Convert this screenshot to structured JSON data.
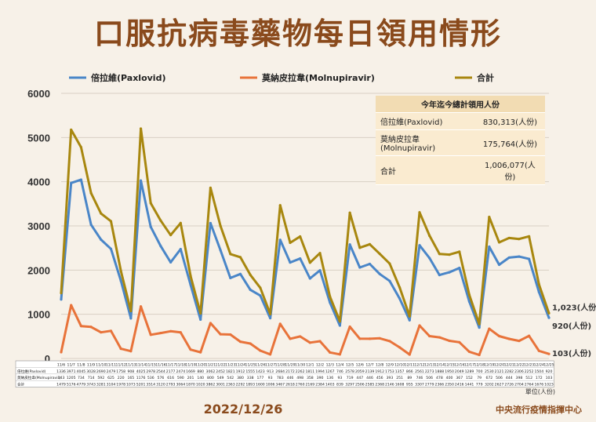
{
  "title": "口服抗病毒藥物每日領用情形",
  "date": "2022/12/26",
  "org": "中央流行疫情指揮中心",
  "unit": "單位(人份)",
  "summary": {
    "header": "今年迄今總計領用人份",
    "rows": [
      {
        "label": "倍拉維(Paxlovid)",
        "value": "830,313(人份)"
      },
      {
        "label": "莫納皮拉韋(Molnupiravir)",
        "value": "175,764(人份)"
      },
      {
        "label": "合計",
        "value": "1,006,077(人份)"
      }
    ]
  },
  "end_labels": {
    "total": "1,023(人份)",
    "paxlovid": "920(人份)",
    "molnupiravir": "103(人份)"
  },
  "colors": {
    "paxlovid": "#4a86c8",
    "molnupiravir": "#e8733a",
    "total": "#a8870f",
    "grid": "#d9d0c3"
  },
  "chart_data": {
    "type": "line",
    "ylim": [
      0,
      6000
    ],
    "yticks": [
      0,
      1000,
      2000,
      3000,
      4000,
      5000,
      6000
    ],
    "x": [
      "11/6",
      "11/7",
      "11/8",
      "11/9",
      "11/10",
      "11/11",
      "11/12",
      "11/13",
      "11/14",
      "11/15",
      "11/16",
      "11/17",
      "11/18",
      "11/19",
      "11/20",
      "11/21",
      "11/22",
      "11/23",
      "11/24",
      "11/25",
      "11/26",
      "11/27",
      "11/28",
      "11/29",
      "11/30",
      "12/1",
      "12/2",
      "12/3",
      "12/4",
      "12/5",
      "12/6",
      "12/7",
      "12/8",
      "12/9",
      "12/10",
      "12/11",
      "12/12",
      "12/13",
      "12/14",
      "12/15",
      "12/16",
      "12/17",
      "12/18",
      "12/19",
      "12/20",
      "12/21",
      "12/22",
      "12/23",
      "12/24",
      "12/25"
    ],
    "series": [
      {
        "name": "倍拉維(Paxlovid)",
        "key": "paxlovid",
        "values": [
          1336,
          3971,
          4045,
          3028,
          2690,
          2479,
          1758,
          908,
          4025,
          2978,
          2544,
          2177,
          2474,
          1669,
          880,
          3062,
          2452,
          1821,
          1912,
          1555,
          1423,
          913,
          2684,
          2172,
          2262,
          1811,
          1994,
          1267,
          746,
          2578,
          2059,
          2139,
          1912,
          1753,
          1357,
          866,
          2561,
          2273,
          1888,
          1950,
          2049,
          1289,
          700,
          2530,
          2121,
          2282,
          2306,
          2252,
          1504,
          920
        ]
      },
      {
        "name": "莫納皮拉韋(Molnupiravir)",
        "key": "molnupiravir",
        "values": [
          143,
          1205,
          734,
          714,
          592,
          625,
          220,
          165,
          1176,
          536,
          576,
          616,
          590,
          201,
          140,
          800,
          549,
          542,
          380,
          338,
          177,
          93,
          783,
          446,
          498,
          358,
          390,
          136,
          93,
          719,
          447,
          446,
          456,
          393,
          251,
          89,
          746,
          506,
          478,
          400,
          367,
          152,
          79,
          672,
          506,
          444,
          398,
          512,
          172,
          103
        ]
      },
      {
        "name": "合計",
        "key": "total",
        "values": [
          1479,
          5176,
          4779,
          3743,
          3281,
          3104,
          1978,
          1073,
          5201,
          3514,
          3120,
          2793,
          3064,
          1870,
          1020,
          3862,
          3001,
          2363,
          2292,
          1893,
          1600,
          1006,
          3467,
          2618,
          2760,
          2169,
          2384,
          1403,
          839,
          3297,
          2506,
          2585,
          2368,
          2146,
          1608,
          955,
          3307,
          2779,
          2366,
          2350,
          2416,
          1441,
          779,
          3202,
          2627,
          2726,
          2704,
          2764,
          1676,
          1023
        ]
      }
    ],
    "legend": [
      "倍拉維(Paxlovid)",
      "莫納皮拉韋(Molnupiravir)",
      "合計"
    ],
    "table_rows": [
      {
        "label": "倍拉維(Paxlovid)",
        "key": "paxlovid"
      },
      {
        "label": "莫納皮拉韋(Molnupiravir)",
        "key": "molnupiravir"
      },
      {
        "label": "合計",
        "key": "total"
      }
    ]
  }
}
